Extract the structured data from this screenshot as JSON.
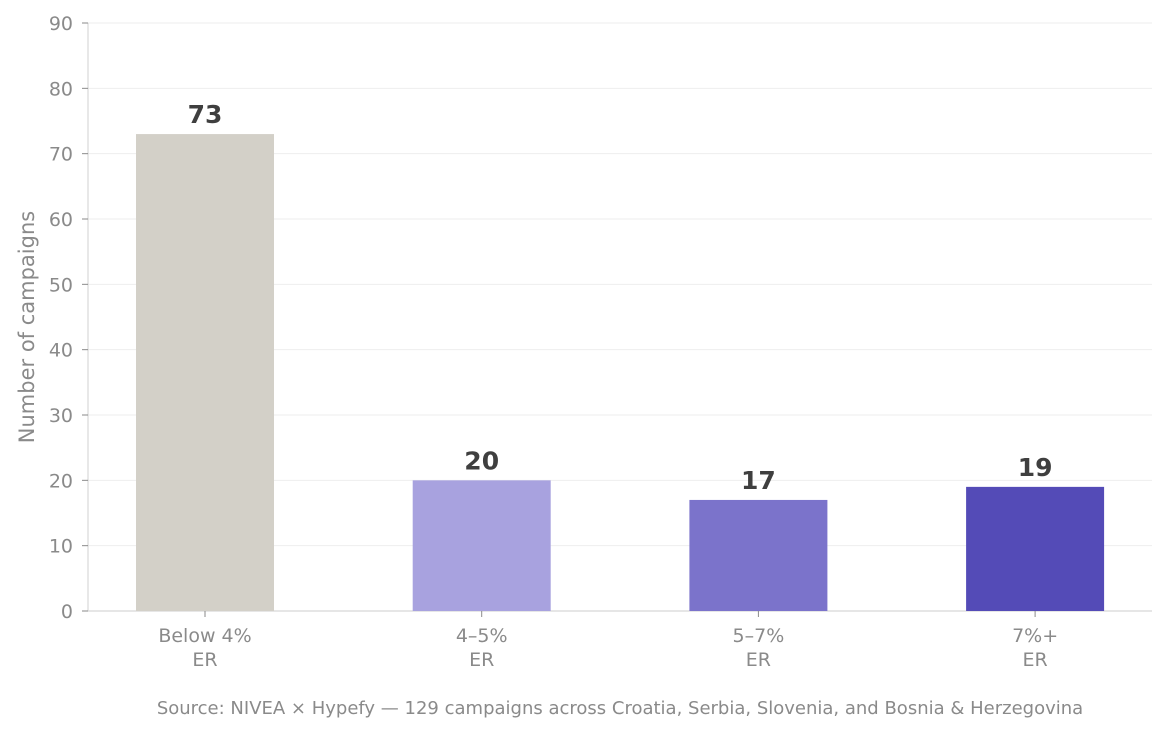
{
  "chart_data": {
    "type": "bar",
    "categories": [
      [
        "Below 4%",
        "ER"
      ],
      [
        "4–5%",
        "ER"
      ],
      [
        "5–7%",
        "ER"
      ],
      [
        "7%+",
        "ER"
      ]
    ],
    "values": [
      73,
      20,
      17,
      19
    ],
    "data_labels": [
      "73",
      "20",
      "17",
      "19"
    ],
    "bar_colors": [
      "#d3d0c8",
      "#a8a2df",
      "#7b73cb",
      "#544bb7"
    ],
    "title": "",
    "xlabel": "",
    "ylabel": "Number of campaigns",
    "ylim": [
      0,
      90
    ],
    "yticks": [
      0,
      10,
      20,
      30,
      40,
      50,
      60,
      70,
      80,
      90
    ],
    "grid": "horizontal",
    "legend": "none"
  },
  "footer": {
    "source": "Source: NIVEA × Hypefy — 129 campaigns across Croatia, Serbia, Slovenia, and Bosnia & Herzegovina"
  }
}
